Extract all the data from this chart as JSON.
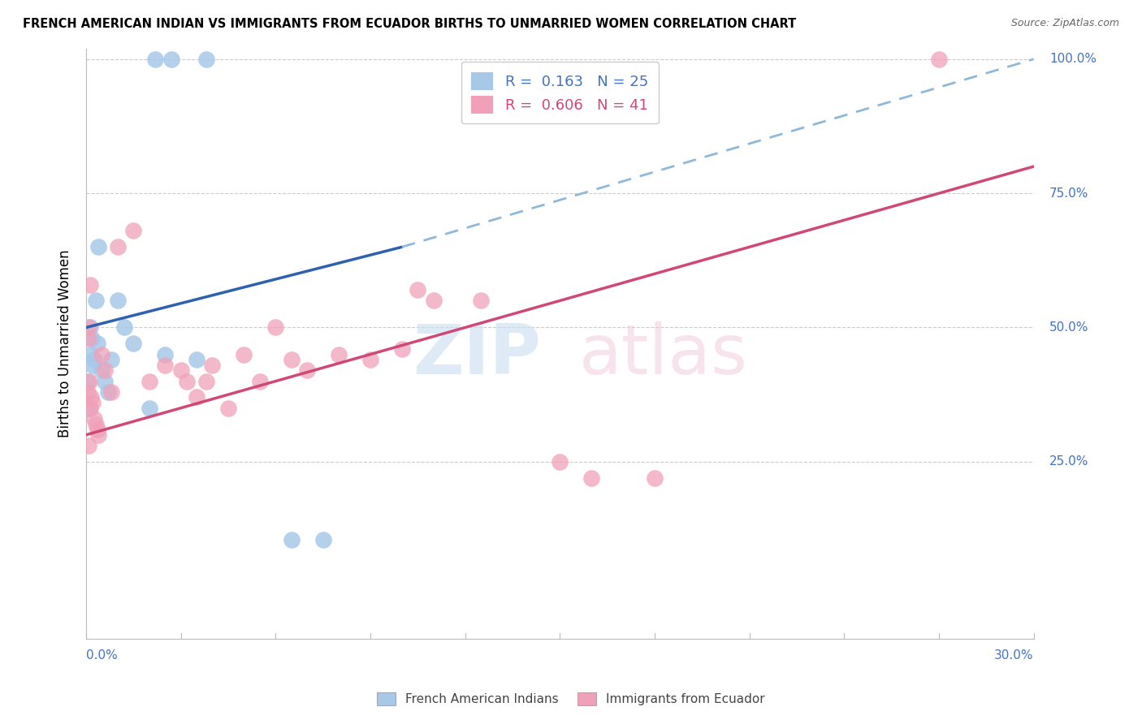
{
  "title": "FRENCH AMERICAN INDIAN VS IMMIGRANTS FROM ECUADOR BIRTHS TO UNMARRIED WOMEN CORRELATION CHART",
  "source": "Source: ZipAtlas.com",
  "ylabel": "Births to Unmarried Women",
  "xmin": 0.0,
  "xmax": 30.0,
  "ymin": 0.0,
  "ymax": 100.0,
  "yticks": [
    25.0,
    50.0,
    75.0,
    100.0
  ],
  "ytick_labels": [
    "25.0%",
    "50.0%",
    "75.0%",
    "100.0%"
  ],
  "legend1_R": "0.163",
  "legend1_N": "25",
  "legend2_R": "0.606",
  "legend2_N": "41",
  "blue_color": "#a8c8e8",
  "blue_line_color": "#3060b0",
  "blue_dash_color": "#90b8d8",
  "pink_color": "#f0a0b8",
  "pink_line_color": "#d04878",
  "blue_solid_x0": 0.0,
  "blue_solid_x1": 10.0,
  "blue_solid_y0": 50.0,
  "blue_solid_y1": 65.0,
  "blue_dash_x0": 10.0,
  "blue_dash_x1": 30.0,
  "blue_dash_y0": 65.0,
  "blue_dash_y1": 100.0,
  "pink_line_x0": 0.0,
  "pink_line_x1": 30.0,
  "pink_line_y0": 30.0,
  "pink_line_y1": 80.0,
  "blue_x": [
    0.05,
    0.1,
    0.12,
    0.15,
    0.18,
    0.2,
    0.25,
    0.3,
    0.35,
    0.4,
    0.5,
    0.6,
    0.7,
    0.8,
    1.0,
    1.2,
    1.5,
    2.0,
    2.5,
    3.5,
    2.2,
    2.7,
    3.8,
    6.5,
    7.5
  ],
  "blue_y": [
    40.0,
    35.0,
    50.0,
    45.0,
    48.0,
    43.0,
    44.0,
    55.0,
    47.0,
    65.0,
    42.0,
    40.0,
    38.0,
    44.0,
    55.0,
    50.0,
    47.0,
    35.0,
    45.0,
    44.0,
    100.0,
    100.0,
    100.0,
    10.5,
    10.5
  ],
  "pink_x": [
    0.05,
    0.1,
    0.12,
    0.15,
    0.2,
    0.25,
    0.3,
    0.35,
    0.4,
    0.5,
    0.6,
    0.8,
    1.0,
    1.5,
    2.0,
    2.5,
    3.0,
    3.2,
    3.5,
    3.8,
    4.0,
    4.5,
    5.0,
    5.5,
    6.0,
    6.5,
    7.0,
    8.0,
    9.0,
    10.0,
    10.5,
    11.0,
    12.5,
    15.0,
    16.0,
    18.0,
    0.07,
    0.09,
    0.13,
    0.08,
    27.0
  ],
  "pink_y": [
    38.0,
    40.0,
    35.0,
    37.0,
    36.0,
    33.0,
    32.0,
    31.0,
    30.0,
    45.0,
    42.0,
    38.0,
    65.0,
    68.0,
    40.0,
    43.0,
    42.0,
    40.0,
    37.0,
    40.0,
    43.0,
    35.0,
    45.0,
    40.0,
    50.0,
    44.0,
    42.0,
    45.0,
    44.0,
    46.0,
    57.0,
    55.0,
    55.0,
    25.0,
    22.0,
    22.0,
    50.0,
    48.0,
    58.0,
    28.0,
    100.0
  ]
}
